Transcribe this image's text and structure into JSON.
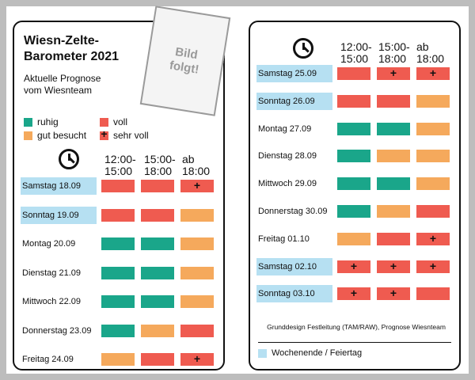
{
  "colors": {
    "ruhig": "#1aa68a",
    "gut_besucht": "#f5a95c",
    "voll": "#ef5b50",
    "sehr_voll": "#ef5b50",
    "weekend": "#b6e0f2"
  },
  "left": {
    "title_line1": "Wiesn-Zelte-",
    "title_line2": "Barometer 2021",
    "subtitle_line1": "Aktuelle Prognose",
    "subtitle_line2": "vom Wiesnteam",
    "legend": {
      "ruhig": "ruhig",
      "voll": "voll",
      "gut_besucht": "gut besucht",
      "sehr_voll": "sehr voll"
    },
    "col1_line1": "12:00-",
    "col1_line2": "15:00",
    "col2_line1": "15:00-",
    "col2_line2": "18:00",
    "col3_line1": "ab",
    "col3_line2": "18:00",
    "rows": [
      {
        "day": "Samstag 18.09",
        "weekend": true,
        "cells": [
          "voll",
          "voll",
          "sehr_voll"
        ]
      },
      {
        "day": "Sonntag 19.09",
        "weekend": true,
        "cells": [
          "voll",
          "voll",
          "gut_besucht"
        ]
      },
      {
        "day": "Montag 20.09",
        "weekend": false,
        "cells": [
          "ruhig",
          "ruhig",
          "gut_besucht"
        ]
      },
      {
        "day": "Dienstag 21.09",
        "weekend": false,
        "cells": [
          "ruhig",
          "ruhig",
          "gut_besucht"
        ]
      },
      {
        "day": "Mittwoch 22.09",
        "weekend": false,
        "cells": [
          "ruhig",
          "ruhig",
          "gut_besucht"
        ]
      },
      {
        "day": "Donnerstag 23.09",
        "weekend": false,
        "cells": [
          "ruhig",
          "gut_besucht",
          "voll"
        ]
      },
      {
        "day": "Freitag 24.09",
        "weekend": false,
        "cells": [
          "gut_besucht",
          "voll",
          "sehr_voll"
        ]
      }
    ]
  },
  "sticker": {
    "line1": "Bild",
    "line2": "folgt!"
  },
  "right": {
    "col1_line1": "12:00-",
    "col1_line2": "15:00",
    "col2_line1": "15:00-",
    "col2_line2": "18:00",
    "col3_line1": "ab",
    "col3_line2": "18:00",
    "rows": [
      {
        "day": "Samstag 25.09",
        "weekend": true,
        "cells": [
          "voll",
          "sehr_voll",
          "sehr_voll"
        ]
      },
      {
        "day": "Sonntag 26.09",
        "weekend": true,
        "cells": [
          "voll",
          "voll",
          "gut_besucht"
        ]
      },
      {
        "day": "Montag 27.09",
        "weekend": false,
        "cells": [
          "ruhig",
          "ruhig",
          "gut_besucht"
        ]
      },
      {
        "day": "Dienstag 28.09",
        "weekend": false,
        "cells": [
          "ruhig",
          "gut_besucht",
          "gut_besucht"
        ]
      },
      {
        "day": "Mittwoch 29.09",
        "weekend": false,
        "cells": [
          "ruhig",
          "ruhig",
          "gut_besucht"
        ]
      },
      {
        "day": "Donnerstag 30.09",
        "weekend": false,
        "cells": [
          "ruhig",
          "gut_besucht",
          "voll"
        ]
      },
      {
        "day": "Freitag 01.10",
        "weekend": false,
        "cells": [
          "gut_besucht",
          "voll",
          "sehr_voll"
        ]
      },
      {
        "day": "Samstag 02.10",
        "weekend": true,
        "cells": [
          "sehr_voll",
          "sehr_voll",
          "sehr_voll"
        ]
      },
      {
        "day": "Sonntag 03.10",
        "weekend": true,
        "cells": [
          "sehr_voll",
          "sehr_voll",
          "voll"
        ]
      }
    ],
    "footer_note": "Grunddesign Festleitung (TAM/RAW), Prognose Wiesnteam",
    "footer_legend": "Wochenende / Feiertag"
  }
}
